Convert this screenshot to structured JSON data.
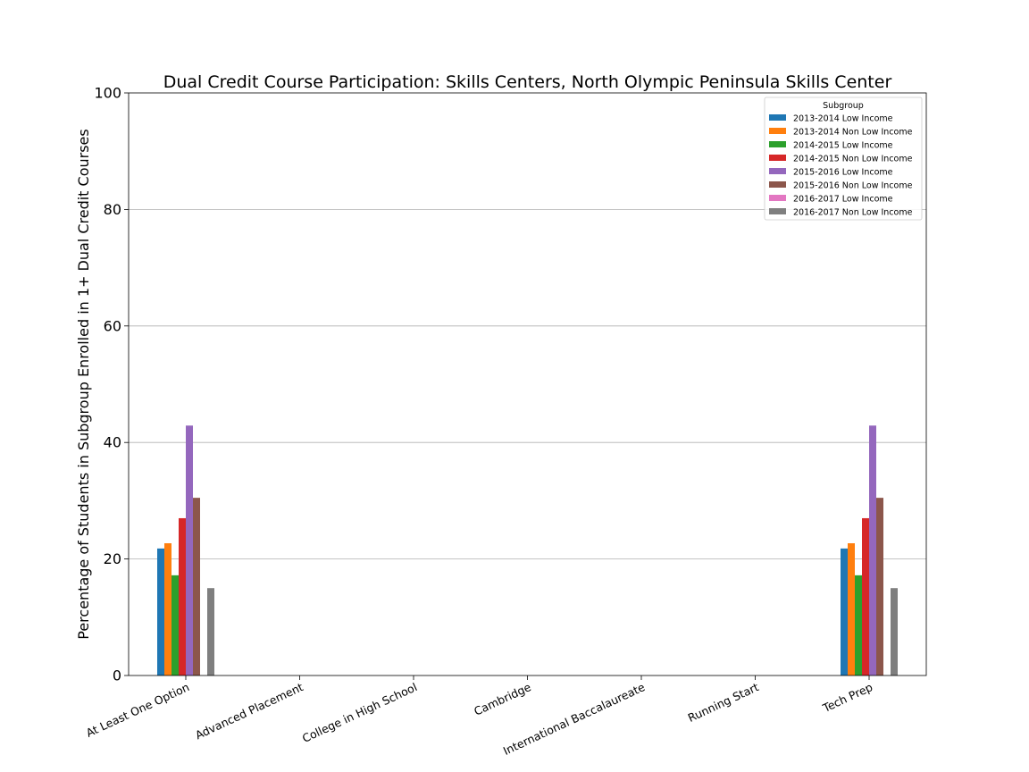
{
  "chart_data": {
    "type": "bar",
    "title": "Dual Credit Course Participation: Skills Centers, North Olympic Peninsula Skills Center",
    "xlabel": "",
    "ylabel": "Percentage of Students in Subgroup Enrolled in 1+ Dual Credit Courses",
    "ylim": [
      0,
      100
    ],
    "yticks": [
      "0",
      "20",
      "40",
      "60",
      "80",
      "100"
    ],
    "grid": "horizontal",
    "legend_title": "Subgroup",
    "legend_position": "top-right",
    "categories": [
      "At Least One Option",
      "Advanced Placement",
      "College in High School",
      "Cambridge",
      "International Baccalaureate",
      "Running Start",
      "Tech Prep"
    ],
    "series": [
      {
        "name": "2013-2014 Low Income",
        "color": "#1f77b4",
        "values": [
          21.8,
          0,
          0,
          0,
          0,
          0,
          21.8
        ]
      },
      {
        "name": "2013-2014 Non Low Income",
        "color": "#ff7f0e",
        "values": [
          22.7,
          0,
          0,
          0,
          0,
          0,
          22.7
        ]
      },
      {
        "name": "2014-2015 Low Income",
        "color": "#2ca02c",
        "values": [
          17.2,
          0,
          0,
          0,
          0,
          0,
          17.2
        ]
      },
      {
        "name": "2014-2015 Non Low Income",
        "color": "#d62728",
        "values": [
          27.0,
          0,
          0,
          0,
          0,
          0,
          27.0
        ]
      },
      {
        "name": "2015-2016 Low Income",
        "color": "#9467bd",
        "values": [
          42.9,
          0,
          0,
          0,
          0,
          0,
          42.9
        ]
      },
      {
        "name": "2015-2016 Non Low Income",
        "color": "#8c564b",
        "values": [
          30.5,
          0,
          0,
          0,
          0,
          0,
          30.5
        ]
      },
      {
        "name": "2016-2017 Low Income",
        "color": "#e377c2",
        "values": [
          0,
          0,
          0,
          0,
          0,
          0,
          0
        ]
      },
      {
        "name": "2016-2017 Non Low Income",
        "color": "#7f7f7f",
        "values": [
          15.0,
          0,
          0,
          0,
          0,
          0,
          15.0
        ]
      }
    ]
  }
}
